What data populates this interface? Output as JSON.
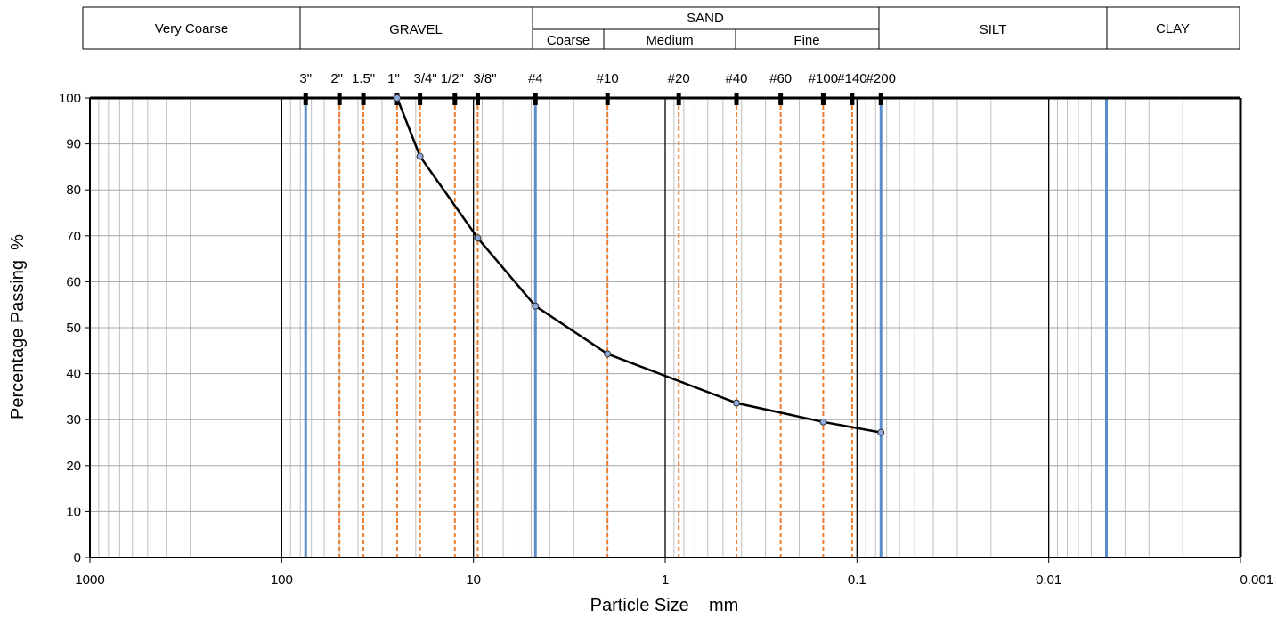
{
  "classification": {
    "very_coarse": "Very Coarse",
    "gravel": "GRAVEL",
    "sand": "SAND",
    "sand_coarse": "Coarse",
    "sand_medium": "Medium",
    "sand_fine": "Fine",
    "silt": "SILT",
    "clay": "CLAY"
  },
  "colors": {
    "sieve_line": "#ED7D31",
    "boundary_line": "#5B8DC9",
    "curve": "#000000",
    "marker_fill": "#8EA9DB",
    "grid_minor": "#BFBFBF",
    "grid_major": "#000000"
  },
  "chart_data": {
    "type": "line",
    "title": "",
    "xlabel": "Particle Size    mm",
    "ylabel": "Percentage Passing  %",
    "x_scale": "log",
    "x_reversed": true,
    "xlim": [
      1000,
      0.001
    ],
    "ylim": [
      0,
      100
    ],
    "x_tick_labels": [
      "1000",
      "100",
      "10",
      "1",
      "0.1",
      "0.01",
      "0.001"
    ],
    "y_tick_labels": [
      "0",
      "10",
      "20",
      "30",
      "40",
      "50",
      "60",
      "70",
      "80",
      "90",
      "100"
    ],
    "grid": true,
    "sieves": [
      {
        "label": "3\"",
        "size": 75
      },
      {
        "label": "2\"",
        "size": 50
      },
      {
        "label": "1.5\"",
        "size": 37.5
      },
      {
        "label": "1\"",
        "size": 25
      },
      {
        "label": "3/4\"",
        "size": 19
      },
      {
        "label": "1/2\"",
        "size": 12.5
      },
      {
        "label": "3/8\"",
        "size": 9.5
      },
      {
        "label": "#4",
        "size": 4.75
      },
      {
        "label": "#10",
        "size": 2
      },
      {
        "label": "#20",
        "size": 0.85
      },
      {
        "label": "#40",
        "size": 0.425
      },
      {
        "label": "#60",
        "size": 0.25
      },
      {
        "label": "#100",
        "size": 0.15
      },
      {
        "label": "#140",
        "size": 0.106
      },
      {
        "label": "#200",
        "size": 0.075
      }
    ],
    "boundaries": [
      75,
      4.75,
      0.075,
      0.005
    ],
    "series": [
      {
        "x": [
          25,
          19,
          9.5,
          4.75,
          2,
          0.425,
          0.15,
          0.075
        ],
        "y": [
          100,
          87.3,
          69.5,
          54.7,
          44.3,
          33.6,
          29.5,
          27.2
        ]
      }
    ]
  }
}
